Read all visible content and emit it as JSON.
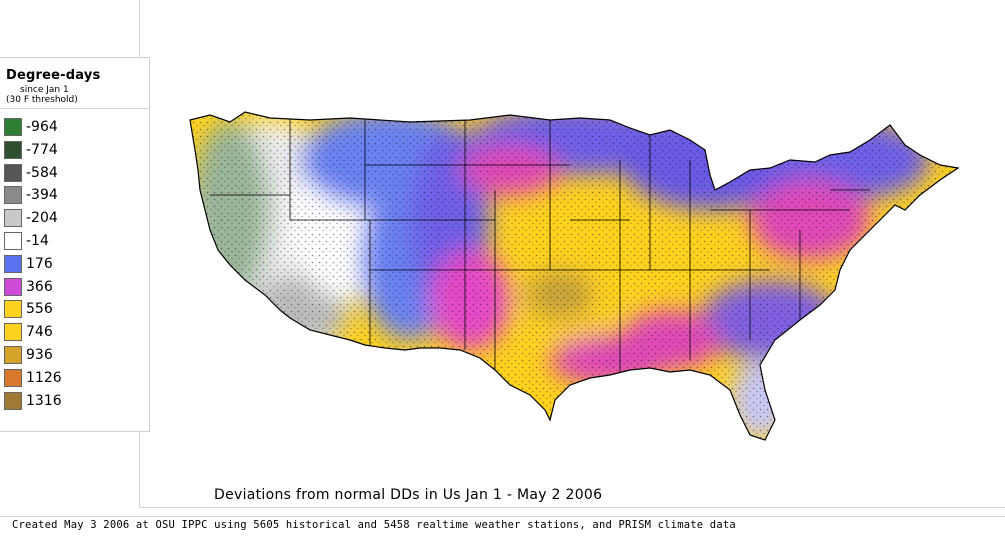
{
  "legend": {
    "title": "Degree-days",
    "subtitle_line1": "since Jan 1",
    "subtitle_line2": "(30 F threshold)",
    "items": [
      {
        "label": "-964",
        "color": "#2e7d32"
      },
      {
        "label": "-774",
        "color": "#2f4f2f"
      },
      {
        "label": "-584",
        "color": "#555555"
      },
      {
        "label": "-394",
        "color": "#8a8a8a"
      },
      {
        "label": "-204",
        "color": "#c8c8c8"
      },
      {
        "label": "-14",
        "color": "#ffffff"
      },
      {
        "label": "176",
        "color": "#5a72f0"
      },
      {
        "label": "366",
        "color": "#d04ad8"
      },
      {
        "label": "556",
        "color": "#ffd21f"
      },
      {
        "label": "746",
        "color": "#ffd21f"
      },
      {
        "label": "936",
        "color": "#d4a42a"
      },
      {
        "label": "1126",
        "color": "#d8782a"
      },
      {
        "label": "1316",
        "color": "#a07a35"
      }
    ]
  },
  "map": {
    "title": "Deviations from normal DDs in Us  Jan 1 - May 2 2006",
    "credit": "Created May 3 2006 at OSU IPPC using 5605 historical and 5458 realtime weather stations, and PRISM climate data"
  }
}
